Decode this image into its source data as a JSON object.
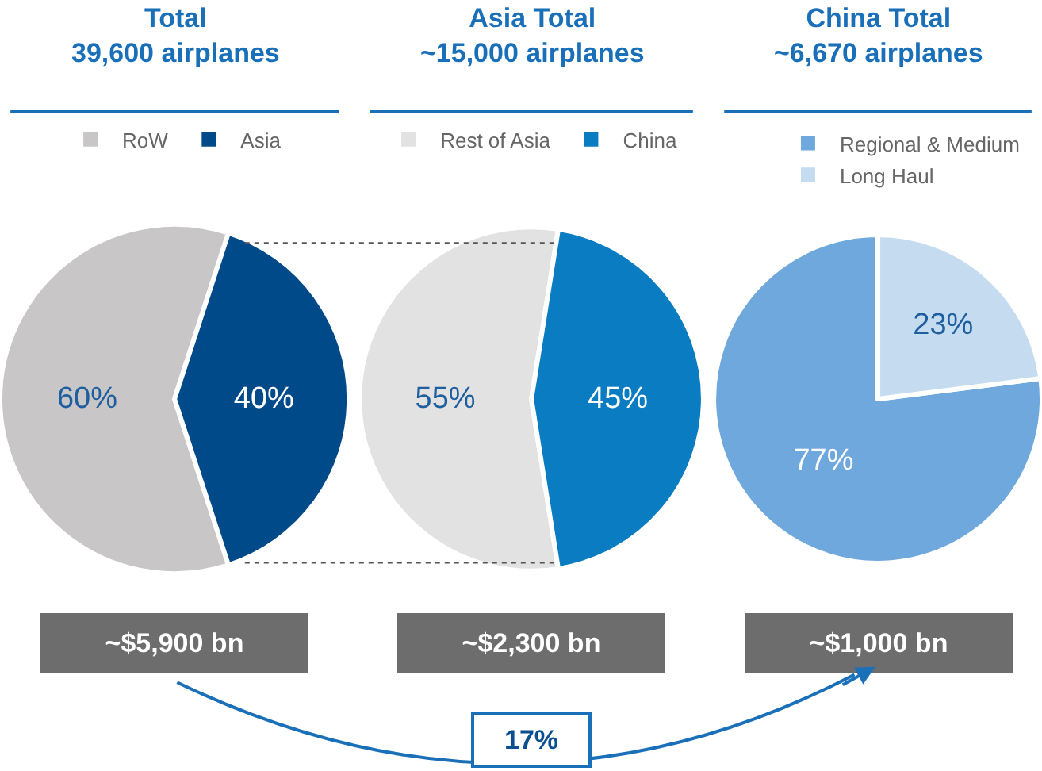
{
  "chart_data": [
    {
      "type": "pie",
      "title": "Total",
      "subtitle": "39,600 airplanes",
      "categories": [
        "RoW",
        "Asia"
      ],
      "values": [
        60,
        40
      ],
      "colors": [
        "#c8c6c6",
        "#004a8a"
      ],
      "value_labels": [
        "60%",
        "40%"
      ],
      "legend": "top",
      "annotations": [
        "~$5,900 bn"
      ]
    },
    {
      "type": "pie",
      "title": "Asia Total",
      "subtitle": "~15,000 airplanes",
      "categories": [
        "Rest of Asia",
        "China"
      ],
      "values": [
        55,
        45
      ],
      "colors": [
        "#e3e2e2",
        "#0a7cc1"
      ],
      "value_labels": [
        "55%",
        "45%"
      ],
      "legend": "top",
      "annotations": [
        "~$2,300 bn",
        "17%"
      ]
    },
    {
      "type": "pie",
      "title": "China Total",
      "subtitle": "~6,670 airplanes",
      "categories": [
        "Regional & Medium",
        "Long Haul"
      ],
      "values": [
        77,
        23
      ],
      "colors": [
        "#6fa8dc",
        "#c5dcf0"
      ],
      "value_labels": [
        "77%",
        "23%"
      ],
      "legend": "top",
      "annotations": [
        "~$1,000 bn"
      ]
    }
  ]
}
